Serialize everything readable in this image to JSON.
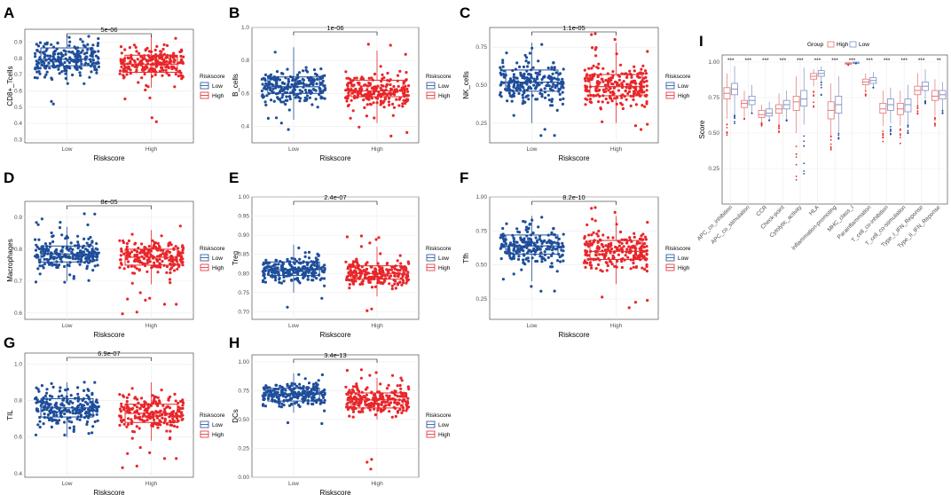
{
  "colors": {
    "low": "#1f4e9a",
    "high": "#e8262a",
    "low_light": "#7f8fc4",
    "high_light": "#e57373"
  },
  "legend": {
    "title": "Riskscore",
    "low": "Low",
    "high": "High"
  },
  "panel_i_legend": {
    "title": "Group",
    "high": "High",
    "low": "Low"
  },
  "chart_data": [
    {
      "panel": "A",
      "type": "scatter",
      "xlabel": "Riskscore",
      "ylabel": "CD8+_Tcells",
      "categories": [
        "Low",
        "High"
      ],
      "ylim": [
        0.28,
        0.98
      ],
      "ticks": [
        0.3,
        0.4,
        0.5,
        0.6,
        0.7,
        0.8,
        0.9
      ],
      "tick_labels": [
        "0.3",
        "0.4",
        "0.5",
        "0.6",
        "0.7",
        "0.8",
        "0.9"
      ],
      "pvalue": "5e-06",
      "box": [
        {
          "min": 0.66,
          "q1": 0.755,
          "median": 0.795,
          "q3": 0.865,
          "max": 0.945
        },
        {
          "min": 0.62,
          "q1": 0.715,
          "median": 0.765,
          "q3": 0.82,
          "max": 0.94
        }
      ],
      "spread": [
        {
          "lo": 0.46,
          "hi": 0.95,
          "n": 240
        },
        {
          "lo": 0.34,
          "hi": 0.95,
          "n": 240
        }
      ]
    },
    {
      "panel": "B",
      "type": "scatter",
      "xlabel": "Riskscore",
      "ylabel": "B_cells",
      "categories": [
        "Low",
        "High"
      ],
      "ylim": [
        0.3,
        1.0
      ],
      "ticks": [
        0.4,
        0.6,
        0.8,
        1.0
      ],
      "tick_labels": [
        "0.4",
        "0.6",
        "0.8",
        "1.0"
      ],
      "pvalue": "1e-06",
      "box": [
        {
          "min": 0.44,
          "q1": 0.6,
          "median": 0.64,
          "q3": 0.7,
          "max": 0.88
        },
        {
          "min": 0.42,
          "q1": 0.58,
          "median": 0.615,
          "q3": 0.68,
          "max": 0.86
        }
      ],
      "spread": [
        {
          "lo": 0.38,
          "hi": 0.88,
          "n": 240
        },
        {
          "lo": 0.32,
          "hi": 0.96,
          "n": 240
        }
      ]
    },
    {
      "panel": "C",
      "type": "scatter",
      "xlabel": "Riskscore",
      "ylabel": "NK_cells",
      "categories": [
        "Low",
        "High"
      ],
      "ylim": [
        0.12,
        0.88
      ],
      "ticks": [
        0.25,
        0.5,
        0.75
      ],
      "tick_labels": [
        "0.25",
        "0.50",
        "0.75"
      ],
      "pvalue": "1.1e-05",
      "box": [
        {
          "min": 0.25,
          "q1": 0.46,
          "median": 0.52,
          "q3": 0.6,
          "max": 0.78
        },
        {
          "min": 0.25,
          "q1": 0.43,
          "median": 0.49,
          "q3": 0.57,
          "max": 0.78
        }
      ],
      "spread": [
        {
          "lo": 0.16,
          "hi": 0.78,
          "n": 240
        },
        {
          "lo": 0.16,
          "hi": 0.87,
          "n": 240
        }
      ]
    },
    {
      "panel": "D",
      "type": "scatter",
      "xlabel": "Riskscore",
      "ylabel": "Macrophages",
      "categories": [
        "Low",
        "High"
      ],
      "ylim": [
        0.58,
        0.95
      ],
      "ticks": [
        0.6,
        0.7,
        0.8,
        0.9
      ],
      "tick_labels": [
        "0.6",
        "0.7",
        "0.8",
        "0.9"
      ],
      "pvalue": "8e-05",
      "box": [
        {
          "min": 0.7,
          "q1": 0.76,
          "median": 0.785,
          "q3": 0.81,
          "max": 0.87
        },
        {
          "min": 0.69,
          "q1": 0.75,
          "median": 0.775,
          "q3": 0.8,
          "max": 0.86
        }
      ],
      "spread": [
        {
          "lo": 0.69,
          "hi": 0.92,
          "n": 240
        },
        {
          "lo": 0.59,
          "hi": 0.88,
          "n": 240
        }
      ]
    },
    {
      "panel": "E",
      "type": "scatter",
      "xlabel": "Riskscore",
      "ylabel": "Treg",
      "categories": [
        "Low",
        "High"
      ],
      "ylim": [
        0.68,
        1.0
      ],
      "ticks": [
        0.7,
        0.75,
        0.8,
        0.85,
        0.9,
        0.95,
        1.0
      ],
      "tick_labels": [
        "0.70",
        "0.75",
        "0.80",
        "0.85",
        "0.90",
        "0.95",
        "1.00"
      ],
      "pvalue": "2.4e-07",
      "box": [
        {
          "min": 0.75,
          "q1": 0.795,
          "median": 0.81,
          "q3": 0.83,
          "max": 0.875
        },
        {
          "min": 0.74,
          "q1": 0.785,
          "median": 0.8,
          "q3": 0.82,
          "max": 0.87
        }
      ],
      "spread": [
        {
          "lo": 0.71,
          "hi": 0.87,
          "n": 240
        },
        {
          "lo": 0.69,
          "hi": 0.905,
          "n": 240
        }
      ]
    },
    {
      "panel": "F",
      "type": "scatter",
      "xlabel": "Riskscore",
      "ylabel": "Tfh",
      "categories": [
        "Low",
        "High"
      ],
      "ylim": [
        0.1,
        1.0
      ],
      "ticks": [
        0.25,
        0.5,
        0.75,
        1.0
      ],
      "tick_labels": [
        "0.25",
        "0.50",
        "0.75",
        "1.00"
      ],
      "pvalue": "8.2e-10",
      "box": [
        {
          "min": 0.38,
          "q1": 0.58,
          "median": 0.64,
          "q3": 0.72,
          "max": 0.86
        },
        {
          "min": 0.36,
          "q1": 0.54,
          "median": 0.6,
          "q3": 0.68,
          "max": 0.86
        }
      ],
      "spread": [
        {
          "lo": 0.3,
          "hi": 0.86,
          "n": 240
        },
        {
          "lo": 0.12,
          "hi": 0.95,
          "n": 240
        }
      ]
    },
    {
      "panel": "G",
      "type": "scatter",
      "xlabel": "Riskscore",
      "ylabel": "TIL",
      "categories": [
        "Low",
        "High"
      ],
      "ylim": [
        0.38,
        1.06
      ],
      "ticks": [
        0.4,
        0.6,
        0.8,
        1.0
      ],
      "tick_labels": [
        "0.4",
        "0.6",
        "0.8",
        "1.0"
      ],
      "pvalue": "6.9e-07",
      "box": [
        {
          "min": 0.6,
          "q1": 0.71,
          "median": 0.76,
          "q3": 0.81,
          "max": 0.9
        },
        {
          "min": 0.58,
          "q1": 0.68,
          "median": 0.73,
          "q3": 0.78,
          "max": 0.9
        }
      ],
      "spread": [
        {
          "lo": 0.6,
          "hi": 0.91,
          "n": 240
        },
        {
          "lo": 0.42,
          "hi": 0.93,
          "n": 240
        }
      ]
    },
    {
      "panel": "H",
      "type": "scatter",
      "xlabel": "Riskscore",
      "ylabel": "DCs",
      "categories": [
        "Low",
        "High"
      ],
      "ylim": [
        0.0,
        1.06
      ],
      "ticks": [
        0.0,
        0.25,
        0.5,
        0.75,
        1.0
      ],
      "tick_labels": [
        "0.00",
        "0.25",
        "0.50",
        "0.75",
        "1.00"
      ],
      "pvalue": "3.4e-13",
      "box": [
        {
          "min": 0.56,
          "q1": 0.66,
          "median": 0.72,
          "q3": 0.77,
          "max": 0.9
        },
        {
          "min": 0.5,
          "q1": 0.6,
          "median": 0.67,
          "q3": 0.73,
          "max": 0.86
        }
      ],
      "spread": [
        {
          "lo": 0.38,
          "hi": 0.9,
          "n": 240
        },
        {
          "lo": 0.06,
          "hi": 0.95,
          "n": 240
        }
      ]
    },
    {
      "panel": "I",
      "type": "box",
      "xlabel": "",
      "ylabel": "Score",
      "ylim": [
        0.0,
        1.05
      ],
      "ticks": [
        0.25,
        0.5,
        0.75,
        1.0
      ],
      "tick_labels": [
        "0.25",
        "0.50",
        "0.75",
        "1.00"
      ],
      "categories": [
        "APC_co_inhibition",
        "APC_co_stimulation",
        "CCR",
        "Check-point",
        "Cytolytic_activity",
        "HLA",
        "Inflammation-promoting",
        "MHC_class_I",
        "Parainflammation",
        "T_cell_co-inhibition",
        "T_cell_co-stimulation",
        "Type_I_IFN_Reponse",
        "Type_II_IFN_Reponse"
      ],
      "significance": [
        "***",
        "***",
        "***",
        "***",
        "***",
        "***",
        "***",
        "***",
        "***",
        "***",
        "***",
        "***",
        "**"
      ],
      "series": [
        {
          "name": "High",
          "box": [
            {
              "min": 0.6,
              "q1": 0.74,
              "median": 0.78,
              "q3": 0.82,
              "max": 0.92
            },
            {
              "min": 0.6,
              "q1": 0.68,
              "median": 0.71,
              "q3": 0.73,
              "max": 0.8
            },
            {
              "min": 0.57,
              "q1": 0.61,
              "median": 0.63,
              "q3": 0.66,
              "max": 0.7
            },
            {
              "min": 0.56,
              "q1": 0.64,
              "median": 0.67,
              "q3": 0.7,
              "max": 0.78
            },
            {
              "min": 0.5,
              "q1": 0.66,
              "median": 0.72,
              "q3": 0.76,
              "max": 0.9
            },
            {
              "min": 0.83,
              "q1": 0.88,
              "median": 0.9,
              "q3": 0.92,
              "max": 0.95
            },
            {
              "min": 0.48,
              "q1": 0.6,
              "median": 0.66,
              "q3": 0.72,
              "max": 0.85
            },
            {
              "min": 0.98,
              "q1": 0.985,
              "median": 0.99,
              "q3": 0.995,
              "max": 1.0
            },
            {
              "min": 0.8,
              "q1": 0.84,
              "median": 0.86,
              "q3": 0.88,
              "max": 0.92
            },
            {
              "min": 0.55,
              "q1": 0.64,
              "median": 0.67,
              "q3": 0.71,
              "max": 0.8
            },
            {
              "min": 0.55,
              "q1": 0.63,
              "median": 0.67,
              "q3": 0.71,
              "max": 0.8
            },
            {
              "min": 0.7,
              "q1": 0.77,
              "median": 0.8,
              "q3": 0.83,
              "max": 0.92
            },
            {
              "min": 0.62,
              "q1": 0.73,
              "median": 0.76,
              "q3": 0.8,
              "max": 0.88
            }
          ]
        },
        {
          "name": "Low",
          "box": [
            {
              "min": 0.63,
              "q1": 0.77,
              "median": 0.81,
              "q3": 0.85,
              "max": 0.97
            },
            {
              "min": 0.64,
              "q1": 0.7,
              "median": 0.73,
              "q3": 0.76,
              "max": 0.84
            },
            {
              "min": 0.59,
              "q1": 0.62,
              "median": 0.64,
              "q3": 0.67,
              "max": 0.72
            },
            {
              "min": 0.6,
              "q1": 0.67,
              "median": 0.7,
              "q3": 0.73,
              "max": 0.8
            },
            {
              "min": 0.56,
              "q1": 0.69,
              "median": 0.74,
              "q3": 0.8,
              "max": 0.96
            },
            {
              "min": 0.86,
              "q1": 0.9,
              "median": 0.92,
              "q3": 0.94,
              "max": 0.97
            },
            {
              "min": 0.5,
              "q1": 0.64,
              "median": 0.7,
              "q3": 0.76,
              "max": 0.9
            },
            {
              "min": 0.99,
              "q1": 0.99,
              "median": 0.995,
              "q3": 1.0,
              "max": 1.0
            },
            {
              "min": 0.82,
              "q1": 0.85,
              "median": 0.87,
              "q3": 0.89,
              "max": 0.93
            },
            {
              "min": 0.57,
              "q1": 0.66,
              "median": 0.7,
              "q3": 0.74,
              "max": 0.82
            },
            {
              "min": 0.56,
              "q1": 0.65,
              "median": 0.7,
              "q3": 0.74,
              "max": 0.84
            },
            {
              "min": 0.74,
              "q1": 0.8,
              "median": 0.83,
              "q3": 0.86,
              "max": 0.95
            },
            {
              "min": 0.66,
              "q1": 0.74,
              "median": 0.77,
              "q3": 0.8,
              "max": 0.86
            }
          ]
        }
      ],
      "outlier_lows": [
        0.48,
        0.6,
        0.55,
        0.5,
        0.13,
        0.68,
        0.37,
        0.98,
        0.76,
        0.4,
        0.41,
        0.62,
        0.55
      ]
    }
  ]
}
